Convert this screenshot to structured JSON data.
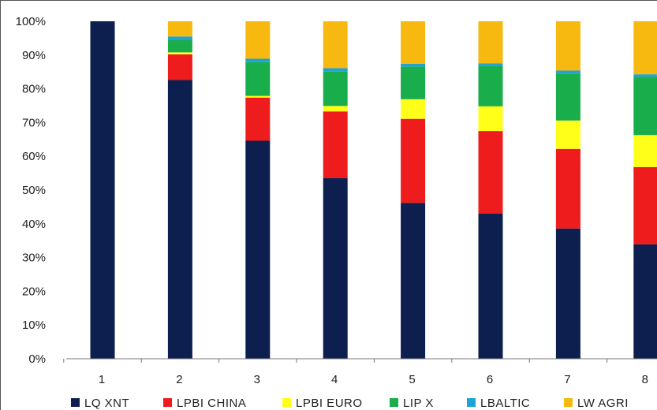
{
  "chart_data": {
    "type": "bar",
    "stacked": true,
    "title": "",
    "xlabel": "",
    "ylabel": "",
    "ylim": [
      0,
      100
    ],
    "y_ticks": [
      "0%",
      "10%",
      "20%",
      "30%",
      "40%",
      "50%",
      "60%",
      "70%",
      "80%",
      "90%",
      "100%"
    ],
    "categories": [
      "1",
      "2",
      "3",
      "4",
      "5",
      "6",
      "7",
      "8"
    ],
    "grid": false,
    "legend_position": "bottom",
    "series": [
      {
        "name": "LQ_XNT",
        "color": "#0d1f4f",
        "values": [
          100,
          82.6,
          64.6,
          53.5,
          46.2,
          43.0,
          38.6,
          33.9
        ]
      },
      {
        "name": "LPBI_CHINA",
        "color": "#ee1c1c",
        "values": [
          0,
          7.6,
          12.8,
          19.8,
          24.9,
          24.5,
          23.6,
          22.9
        ]
      },
      {
        "name": "LPBI_EURO",
        "color": "#ffff1a",
        "values": [
          0,
          0.6,
          0.5,
          1.6,
          5.8,
          7.3,
          8.4,
          9.5
        ]
      },
      {
        "name": "LIP_X",
        "color": "#1aad4c",
        "values": [
          0,
          3.7,
          10.0,
          10.2,
          9.7,
          11.9,
          13.9,
          17.3
        ]
      },
      {
        "name": "LBALTIC",
        "color": "#1fa2d6",
        "values": [
          0,
          1.0,
          1.0,
          1.0,
          0.8,
          0.8,
          0.9,
          0.7
        ]
      },
      {
        "name": "LW_AGRI",
        "color": "#f7b90f",
        "values": [
          0,
          4.5,
          11.1,
          13.9,
          12.6,
          12.5,
          14.6,
          15.7
        ]
      }
    ],
    "legend_labels": [
      "LQ XNT",
      "LPBI CHINA",
      "LPBI EURO",
      "LIP X",
      "LBALTIC",
      "LW AGRI"
    ]
  }
}
